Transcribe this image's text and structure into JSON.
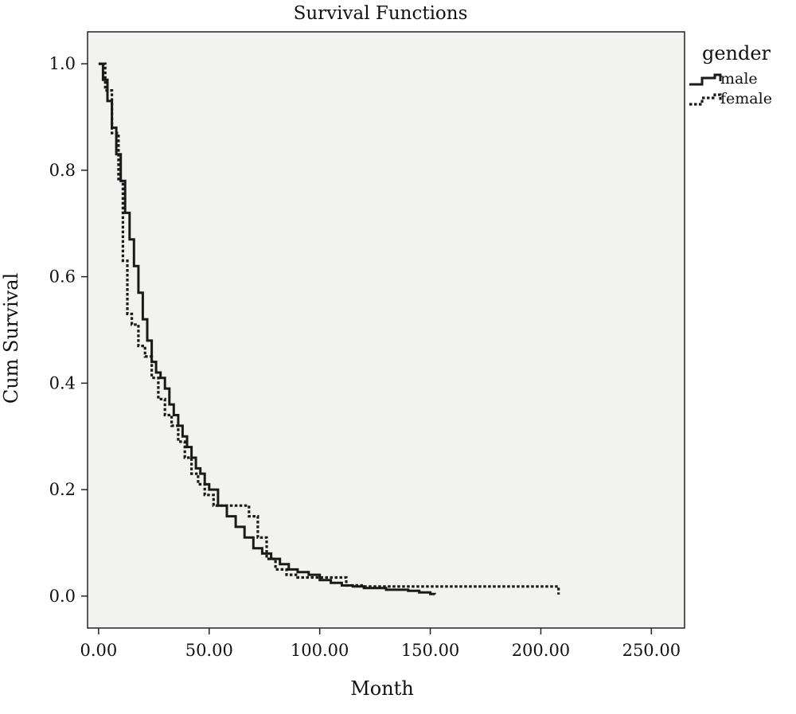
{
  "chart_data": {
    "type": "line",
    "title": "Survival Functions",
    "xlabel": "Month",
    "ylabel": "Cum Survival",
    "xlim": [
      -5,
      265
    ],
    "ylim": [
      -0.06,
      1.06
    ],
    "x_ticks": [
      0,
      50,
      100,
      150,
      200,
      250
    ],
    "x_tick_labels": [
      "0.00",
      "50.00",
      "100.00",
      "150.00",
      "200.00",
      "250.00"
    ],
    "y_ticks": [
      0.0,
      0.2,
      0.4,
      0.6,
      0.8,
      1.0
    ],
    "y_tick_labels": [
      "0.0",
      "0.2",
      "0.4",
      "0.6",
      "0.8",
      "1.0"
    ],
    "grid": false,
    "background": "#f2f3f1",
    "legend": {
      "title": "gender",
      "position": "top-right, outside plot"
    },
    "series": [
      {
        "name": "male",
        "style": "solid",
        "color": "#1a1a1a",
        "x": [
          0,
          2,
          4,
          6,
          8,
          10,
          12,
          14,
          16,
          18,
          20,
          22,
          24,
          26,
          28,
          30,
          32,
          34,
          36,
          38,
          40,
          42,
          44,
          46,
          48,
          50,
          54,
          58,
          62,
          66,
          70,
          74,
          78,
          82,
          86,
          90,
          95,
          100,
          105,
          110,
          115,
          120,
          130,
          140,
          145,
          150,
          152
        ],
        "y": [
          1.0,
          0.97,
          0.93,
          0.88,
          0.83,
          0.78,
          0.72,
          0.67,
          0.62,
          0.57,
          0.52,
          0.48,
          0.44,
          0.42,
          0.41,
          0.39,
          0.36,
          0.34,
          0.32,
          0.3,
          0.28,
          0.26,
          0.24,
          0.23,
          0.21,
          0.2,
          0.17,
          0.15,
          0.13,
          0.11,
          0.09,
          0.08,
          0.07,
          0.06,
          0.05,
          0.045,
          0.04,
          0.03,
          0.025,
          0.02,
          0.018,
          0.015,
          0.012,
          0.01,
          0.007,
          0.004,
          0.003
        ]
      },
      {
        "name": "female",
        "style": "dotted",
        "color": "#1a1a1a",
        "x": [
          0,
          3,
          6,
          9,
          11,
          13,
          15,
          18,
          21,
          24,
          27,
          30,
          33,
          36,
          39,
          42,
          45,
          48,
          52,
          56,
          60,
          64,
          68,
          72,
          76,
          80,
          85,
          90,
          100,
          110,
          112,
          120,
          150,
          170,
          190,
          200,
          207,
          208
        ],
        "y": [
          1.0,
          0.95,
          0.87,
          0.78,
          0.63,
          0.53,
          0.51,
          0.47,
          0.45,
          0.41,
          0.37,
          0.34,
          0.32,
          0.29,
          0.26,
          0.23,
          0.21,
          0.19,
          0.17,
          0.17,
          0.17,
          0.17,
          0.15,
          0.11,
          0.07,
          0.05,
          0.04,
          0.035,
          0.035,
          0.035,
          0.02,
          0.018,
          0.018,
          0.018,
          0.018,
          0.018,
          0.018,
          0.003
        ]
      }
    ]
  }
}
